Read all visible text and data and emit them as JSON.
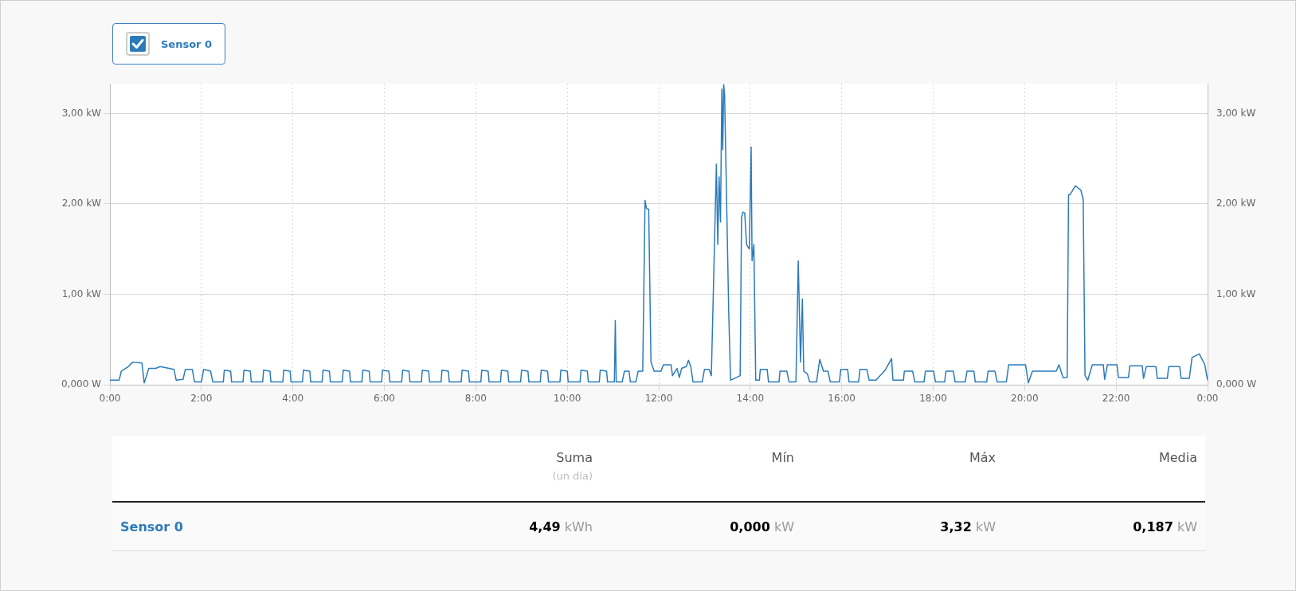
{
  "chart_data": {
    "type": "line",
    "xlim": [
      0,
      24
    ],
    "xticks": [
      {
        "value": 0,
        "label": "0:00"
      },
      {
        "value": 2,
        "label": "2:00"
      },
      {
        "value": 4,
        "label": "4:00"
      },
      {
        "value": 6,
        "label": "6:00"
      },
      {
        "value": 8,
        "label": "8:00"
      },
      {
        "value": 10,
        "label": "10:00"
      },
      {
        "value": 12,
        "label": "12:00"
      },
      {
        "value": 14,
        "label": "14:00"
      },
      {
        "value": 16,
        "label": "16:00"
      },
      {
        "value": 18,
        "label": "18:00"
      },
      {
        "value": 20,
        "label": "20:00"
      },
      {
        "value": 22,
        "label": "22:00"
      },
      {
        "value": 24,
        "label": "0:00"
      }
    ],
    "ylim": [
      0,
      3.33
    ],
    "yticks": [
      {
        "value": 0,
        "label": "0,000 W"
      },
      {
        "value": 1,
        "label": "1,00 kW"
      },
      {
        "value": 2,
        "label": "2,00 kW"
      },
      {
        "value": 3,
        "label": "3,00 kW"
      }
    ],
    "y2lim": [
      0,
      3.33
    ],
    "y2ticks": [
      {
        "value": 0,
        "label": "0,000 W"
      },
      {
        "value": 1,
        "label": "1,00 kW"
      },
      {
        "value": 2,
        "label": "2,00 kW"
      },
      {
        "value": 3,
        "label": "3,00 kW"
      }
    ],
    "grid": true,
    "legend": "top left",
    "marker": "none",
    "line_style": "solid",
    "series": [
      {
        "name": "Sensor 0",
        "color": "#2b7bba",
        "x": [
          0,
          0.2,
          0.25,
          0.4,
          0.5,
          0.7,
          0.75,
          0.85,
          1.0,
          1.1,
          1.4,
          1.45,
          1.6,
          1.65,
          1.8,
          1.85,
          2.0,
          2.05,
          2.2,
          2.25,
          2.48,
          2.5,
          2.64,
          2.66,
          2.91,
          2.93,
          3.07,
          3.09,
          3.34,
          3.36,
          3.5,
          3.52,
          3.78,
          3.8,
          3.94,
          3.96,
          4.21,
          4.23,
          4.37,
          4.39,
          4.64,
          4.66,
          4.8,
          4.82,
          5.08,
          5.1,
          5.24,
          5.26,
          5.51,
          5.53,
          5.67,
          5.69,
          5.94,
          5.96,
          6.1,
          6.12,
          6.38,
          6.4,
          6.54,
          6.56,
          6.81,
          6.83,
          6.97,
          6.99,
          7.24,
          7.26,
          7.4,
          7.42,
          7.68,
          7.7,
          7.84,
          7.86,
          8.11,
          8.13,
          8.27,
          8.29,
          8.54,
          8.56,
          8.7,
          8.72,
          8.98,
          9.0,
          9.14,
          9.16,
          9.41,
          9.43,
          9.57,
          9.59,
          9.84,
          9.86,
          10.0,
          10.02,
          10.28,
          10.3,
          10.44,
          10.46,
          10.7,
          10.72,
          10.86,
          10.88,
          11.03,
          11.05,
          11.07,
          11.2,
          11.25,
          11.35,
          11.38,
          11.5,
          11.55,
          11.65,
          11.7,
          11.73,
          11.78,
          11.83,
          11.9,
          12.05,
          12.1,
          12.27,
          12.3,
          12.4,
          12.45,
          12.5,
          12.6,
          12.65,
          12.7,
          12.75,
          12.95,
          13.0,
          13.1,
          13.15,
          13.26,
          13.29,
          13.32,
          13.35,
          13.38,
          13.4,
          13.42,
          13.44,
          13.5,
          13.53,
          13.57,
          13.7,
          13.78,
          13.81,
          13.84,
          13.88,
          13.92,
          13.98,
          14.02,
          14.04,
          14.08,
          14.12,
          14.2,
          14.22,
          14.37,
          14.4,
          14.63,
          14.65,
          14.8,
          14.85,
          15.0,
          15.05,
          15.1,
          15.14,
          15.17,
          15.25,
          15.3,
          15.45,
          15.52,
          15.6,
          15.7,
          15.75,
          15.95,
          15.98,
          16.13,
          16.16,
          16.37,
          16.4,
          16.55,
          16.6,
          16.75,
          16.95,
          17.09,
          17.12,
          17.35,
          17.37,
          17.55,
          17.6,
          17.8,
          17.83,
          18.01,
          18.05,
          18.25,
          18.28,
          18.44,
          18.48,
          18.7,
          18.74,
          18.89,
          18.92,
          19.17,
          19.2,
          19.35,
          19.4,
          19.6,
          19.65,
          20.02,
          20.08,
          20.17,
          20.69,
          20.75,
          20.84,
          20.93,
          20.96,
          20.99,
          21.11,
          21.23,
          21.28,
          21.32,
          21.38,
          21.48,
          21.72,
          21.75,
          21.81,
          22.02,
          22.05,
          22.27,
          22.3,
          22.57,
          22.6,
          22.66,
          22.87,
          22.9,
          23.12,
          23.15,
          23.39,
          23.42,
          23.6,
          23.66,
          23.82,
          23.94,
          24.0
        ],
        "values": [
          0.05,
          0.05,
          0.15,
          0.2,
          0.25,
          0.24,
          0.02,
          0.18,
          0.18,
          0.2,
          0.17,
          0.05,
          0.06,
          0.17,
          0.17,
          0.03,
          0.03,
          0.17,
          0.15,
          0.03,
          0.03,
          0.16,
          0.15,
          0.03,
          0.03,
          0.16,
          0.15,
          0.03,
          0.03,
          0.16,
          0.15,
          0.03,
          0.03,
          0.16,
          0.15,
          0.03,
          0.03,
          0.16,
          0.15,
          0.03,
          0.03,
          0.16,
          0.15,
          0.03,
          0.03,
          0.16,
          0.15,
          0.03,
          0.03,
          0.16,
          0.15,
          0.03,
          0.03,
          0.16,
          0.15,
          0.03,
          0.03,
          0.16,
          0.15,
          0.03,
          0.03,
          0.16,
          0.15,
          0.03,
          0.03,
          0.16,
          0.15,
          0.03,
          0.03,
          0.16,
          0.15,
          0.03,
          0.03,
          0.16,
          0.15,
          0.03,
          0.03,
          0.16,
          0.15,
          0.03,
          0.03,
          0.16,
          0.15,
          0.03,
          0.03,
          0.16,
          0.15,
          0.03,
          0.03,
          0.16,
          0.15,
          0.03,
          0.03,
          0.16,
          0.15,
          0.03,
          0.03,
          0.16,
          0.15,
          0.03,
          0.03,
          0.71,
          0.03,
          0.03,
          0.15,
          0.15,
          0.03,
          0.03,
          0.15,
          0.15,
          2.04,
          1.95,
          1.94,
          0.25,
          0.15,
          0.15,
          0.22,
          0.22,
          0.1,
          0.18,
          0.08,
          0.18,
          0.2,
          0.27,
          0.2,
          0.03,
          0.03,
          0.17,
          0.17,
          0.1,
          2.44,
          1.55,
          2.3,
          1.8,
          3.27,
          2.6,
          3.32,
          3.2,
          1.6,
          0.8,
          0.05,
          0.08,
          0.1,
          1.85,
          1.91,
          1.9,
          1.55,
          1.5,
          2.63,
          1.37,
          1.55,
          0.05,
          0.05,
          0.17,
          0.17,
          0.03,
          0.03,
          0.15,
          0.15,
          0.03,
          0.03,
          1.37,
          0.25,
          0.95,
          0.15,
          0.12,
          0.03,
          0.03,
          0.28,
          0.15,
          0.15,
          0.03,
          0.03,
          0.17,
          0.17,
          0.03,
          0.03,
          0.17,
          0.17,
          0.05,
          0.05,
          0.16,
          0.29,
          0.05,
          0.05,
          0.15,
          0.15,
          0.03,
          0.03,
          0.15,
          0.15,
          0.03,
          0.03,
          0.15,
          0.15,
          0.03,
          0.03,
          0.15,
          0.15,
          0.03,
          0.03,
          0.15,
          0.15,
          0.03,
          0.03,
          0.22,
          0.22,
          0.02,
          0.15,
          0.15,
          0.22,
          0.08,
          0.08,
          2.1,
          2.1,
          2.2,
          2.15,
          2.05,
          0.1,
          0.05,
          0.22,
          0.22,
          0.06,
          0.22,
          0.22,
          0.08,
          0.08,
          0.21,
          0.21,
          0.07,
          0.2,
          0.2,
          0.07,
          0.07,
          0.2,
          0.2,
          0.07,
          0.07,
          0.3,
          0.34,
          0.22,
          0.05
        ]
      }
    ],
    "annotations": [
      "Suma",
      "(un día)",
      "Mín",
      "Máx",
      "Media",
      "Sensor 0",
      "4,49 kWh",
      "0,000 kW",
      "3,32 kW",
      "0,187 kW"
    ]
  }
}
